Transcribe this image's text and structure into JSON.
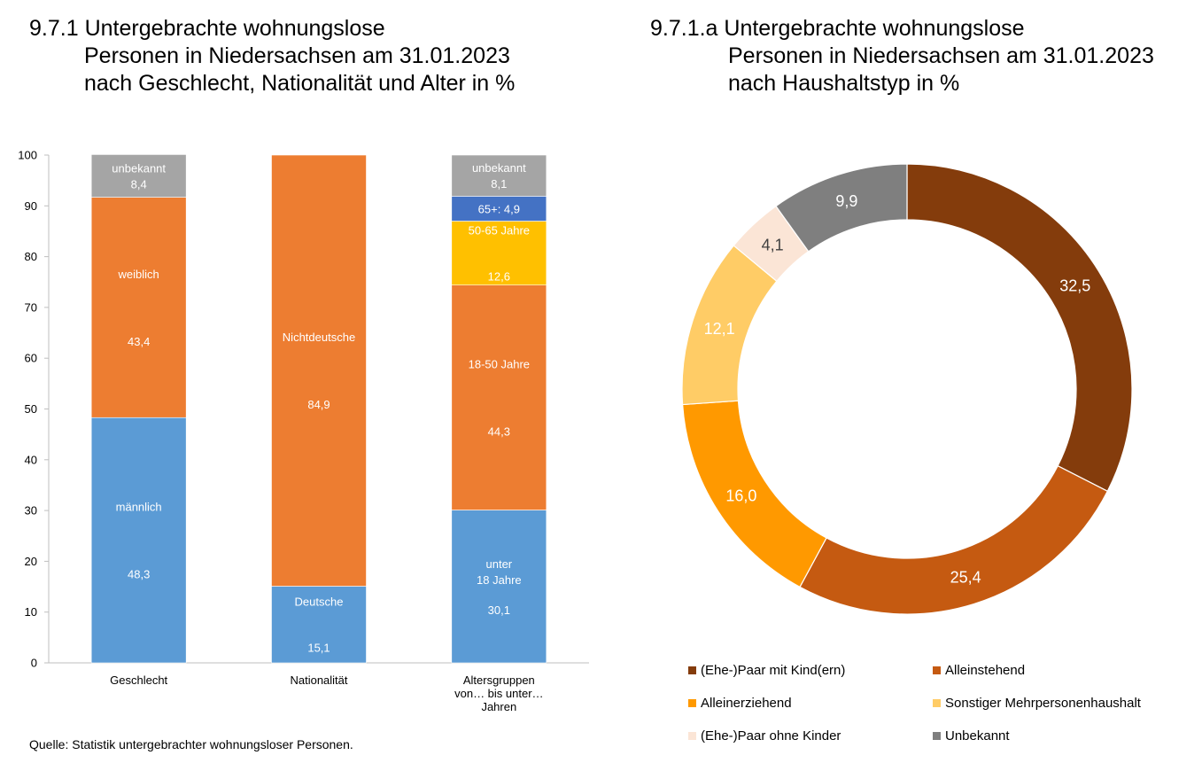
{
  "left_title": {
    "number": "9.7.1",
    "lines": [
      "Untergebrachte wohnungslose",
      "Personen in Niedersachsen am 31.01.2023",
      "nach Geschlecht, Nationalität und Alter in %"
    ]
  },
  "right_title": {
    "number": "9.7.1.a",
    "lines": [
      "Untergebrachte wohnungslose",
      "Personen in Niedersachsen am 31.01.2023",
      "nach Haushaltstyp in %"
    ]
  },
  "source": "Quelle: Statistik untergebrachter wohnungsloser Personen.",
  "chart_data": [
    {
      "type": "bar",
      "stacked": true,
      "ylim": [
        0,
        100
      ],
      "yticks": [
        0,
        10,
        20,
        30,
        40,
        50,
        60,
        70,
        80,
        90,
        100
      ],
      "grid": false,
      "categories": [
        "Geschlecht",
        "Nationalität",
        "Altersgruppen von… bis unter… Jahren"
      ],
      "category_label_lines": [
        [
          "Geschlecht"
        ],
        [
          "Nationalität"
        ],
        [
          "Altersgruppen",
          "von… bis unter…",
          "Jahren"
        ]
      ],
      "bars": [
        {
          "category": "Geschlecht",
          "segments": [
            {
              "label_lines": [
                "männlich",
                "48,3"
              ],
              "value": 48.3,
              "color": "#5B9BD5"
            },
            {
              "label_lines": [
                "weiblich",
                "43,4"
              ],
              "value": 43.4,
              "color": "#ED7D31"
            },
            {
              "label_lines": [
                "unbekannt",
                "8,4"
              ],
              "value": 8.4,
              "color": "#A5A5A5"
            }
          ]
        },
        {
          "category": "Nationalität",
          "segments": [
            {
              "label_lines": [
                "Deutsche",
                "15,1"
              ],
              "value": 15.1,
              "color": "#5B9BD5"
            },
            {
              "label_lines": [
                "Nichtdeutsche",
                "84,9"
              ],
              "value": 84.9,
              "color": "#ED7D31"
            }
          ]
        },
        {
          "category": "Altersgruppen von… bis unter… Jahren",
          "segments": [
            {
              "label_lines": [
                "unter",
                "18 Jahre",
                "30,1"
              ],
              "value": 30.1,
              "color": "#5B9BD5"
            },
            {
              "label_lines": [
                "18-50 Jahre",
                "44,3"
              ],
              "value": 44.3,
              "color": "#ED7D31"
            },
            {
              "label_lines": [
                "50-65 Jahre",
                "12,6"
              ],
              "value": 12.6,
              "color": "#FFC000"
            },
            {
              "label_lines": [
                "65+: 4,9"
              ],
              "value": 4.9,
              "color": "#4472C4"
            },
            {
              "label_lines": [
                "unbekannt",
                "8,1"
              ],
              "value": 8.1,
              "color": "#A5A5A5"
            }
          ]
        }
      ]
    },
    {
      "type": "pie",
      "donut": true,
      "slices": [
        {
          "name": "(Ehe-)Paar mit Kind(ern)",
          "value": 32.5,
          "label": "32,5",
          "color": "#843C0C",
          "text_color": "#ffffff"
        },
        {
          "name": "Alleinstehend",
          "value": 25.4,
          "label": "25,4",
          "color": "#C55A11",
          "text_color": "#ffffff"
        },
        {
          "name": "Alleinerziehend",
          "value": 16.0,
          "label": "16,0",
          "color": "#FF9900",
          "text_color": "#ffffff"
        },
        {
          "name": "Sonstiger Mehrpersonenhaushalt",
          "value": 12.1,
          "label": "12,1",
          "color": "#FFCC66",
          "text_color": "#ffffff"
        },
        {
          "name": "(Ehe-)Paar ohne Kinder",
          "value": 4.1,
          "label": "4,1",
          "color": "#FBE5D6",
          "text_color": "#404040"
        },
        {
          "name": "Unbekannt",
          "value": 9.9,
          "label": "9,9",
          "color": "#7F7F7F",
          "text_color": "#ffffff"
        }
      ],
      "legend": {
        "placement": "bottom"
      }
    }
  ]
}
